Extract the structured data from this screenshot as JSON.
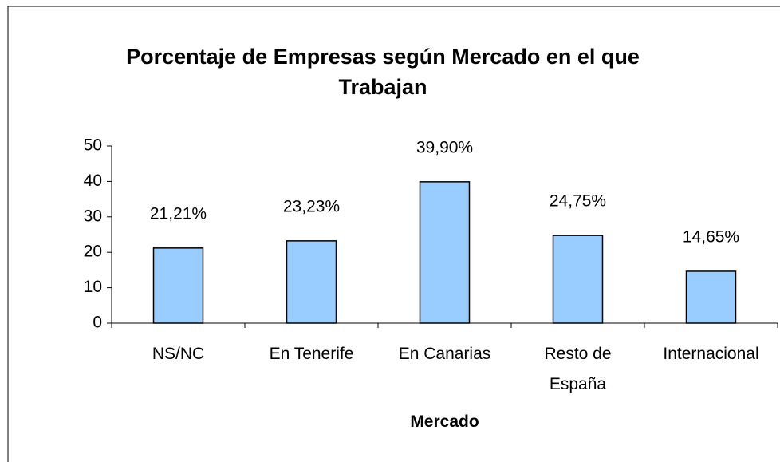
{
  "chart_data": {
    "type": "bar",
    "title": "Porcentaje de Empresas según Mercado en el que Trabajan",
    "x_label": "Mercado",
    "categories": [
      "NS/NC",
      "En Tenerife",
      "En Canarias",
      "Resto de España",
      "Internacional"
    ],
    "values": [
      21.21,
      23.23,
      39.9,
      24.75,
      14.65
    ],
    "value_labels": [
      "21,21%",
      "23,23%",
      "39,90%",
      "24,75%",
      "14,65%"
    ],
    "color": "#99ccff",
    "ylim": [
      0,
      50
    ],
    "yticks": [
      0,
      10,
      20,
      30,
      40,
      50
    ],
    "grid": false
  }
}
